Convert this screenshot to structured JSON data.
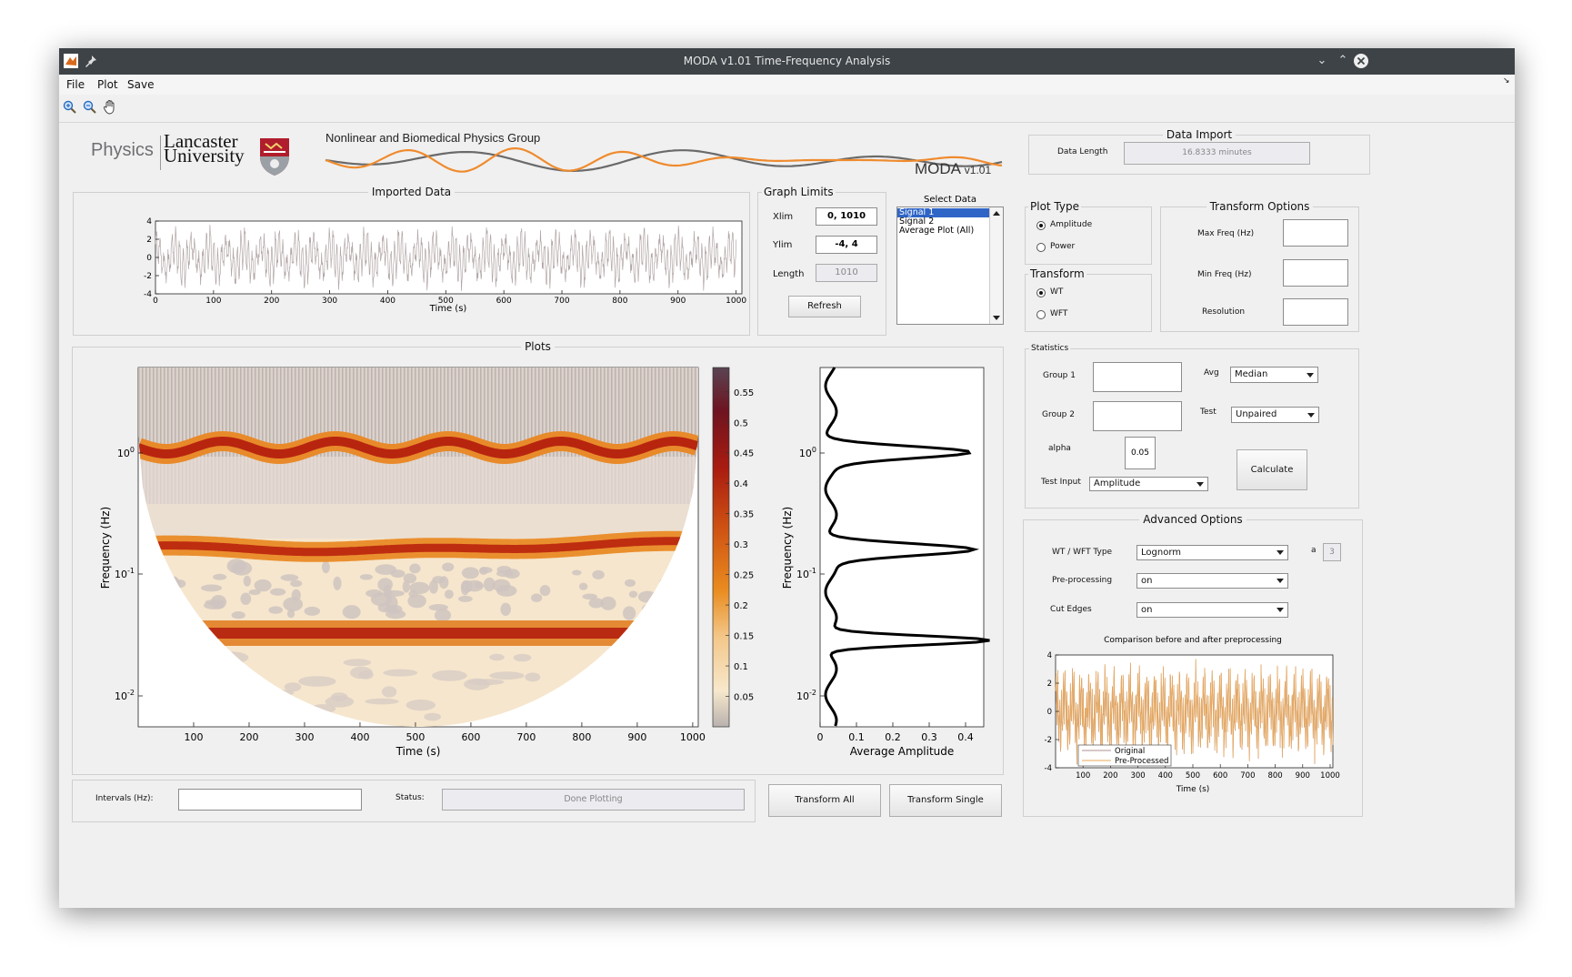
{
  "window": {
    "title": "MODA v1.01 Time-Frequency Analysis"
  },
  "menu": [
    "File",
    "Plot",
    "Save"
  ],
  "header": {
    "physics": "Physics",
    "lancaster": "Lancaster",
    "university": "University",
    "group_name": "Nonlinear and Biomedical Physics Group",
    "moda": "MODA",
    "version": "v1.01"
  },
  "imported_data": {
    "title": "Imported Data",
    "xlabel": "Time (s)",
    "yticks": [
      "4",
      "2",
      "0",
      "-2",
      "-4"
    ],
    "xticks": [
      "0",
      "100",
      "200",
      "300",
      "400",
      "500",
      "600",
      "700",
      "800",
      "900",
      "1000"
    ],
    "color": "#b3a6a6"
  },
  "graph_limits": {
    "title": "Graph Limits",
    "xlim_label": "Xlim",
    "xlim_value": "0, 1010",
    "ylim_label": "Ylim",
    "ylim_value": "-4, 4",
    "length_label": "Length",
    "length_value": "1010",
    "refresh_label": "Refresh"
  },
  "select_data": {
    "title": "Select Data",
    "items": [
      "Signal 1",
      "Signal 2",
      "Average Plot (All)"
    ],
    "selected_index": 0
  },
  "data_import": {
    "title": "Data Import",
    "length_label": "Data Length",
    "length_value": "16.8333 minutes"
  },
  "plot_type": {
    "title": "Plot Type",
    "options": [
      "Amplitude",
      "Power"
    ],
    "selected": "Amplitude"
  },
  "transform": {
    "title": "Transform",
    "options": [
      "WT",
      "WFT"
    ],
    "selected": "WT"
  },
  "transform_options": {
    "title": "Transform Options",
    "max_freq_label": "Max Freq (Hz)",
    "min_freq_label": "Min Freq (Hz)",
    "resolution_label": "Resolution"
  },
  "plots": {
    "title": "Plots",
    "ylabel": "Frequency (Hz)",
    "xlabel": "Time (s)",
    "xticks": [
      "100",
      "200",
      "300",
      "400",
      "500",
      "600",
      "700",
      "800",
      "900",
      "1000"
    ],
    "yticks": [
      {
        "base": "10",
        "exp": "0"
      },
      {
        "base": "10",
        "exp": "-1"
      },
      {
        "base": "10",
        "exp": "-2"
      }
    ],
    "colorbar_ticks": [
      "0.55",
      "0.5",
      "0.45",
      "0.4",
      "0.35",
      "0.3",
      "0.25",
      "0.2",
      "0.15",
      "0.1",
      "0.05"
    ],
    "avg_xlabel": "Average Amplitude",
    "avg_xticks": [
      "0",
      "0.1",
      "0.2",
      "0.3",
      "0.4"
    ]
  },
  "statistics": {
    "title": "Statistics",
    "group1_label": "Group 1",
    "group2_label": "Group 2",
    "avg_label": "Avg",
    "avg_value": "Median",
    "test_label": "Test",
    "test_value": "Unpaired",
    "alpha_label": "alpha",
    "alpha_value": "0.05",
    "test_input_label": "Test Input",
    "test_input_value": "Amplitude",
    "calculate_label": "Calculate"
  },
  "advanced_options": {
    "title": "Advanced Options",
    "type_label": "WT / WFT Type",
    "type_value": "Lognorm",
    "a_label": "a",
    "a_value": "3",
    "preproc_label": "Pre-processing",
    "preproc_value": "on",
    "cut_edges_label": "Cut Edges",
    "cut_edges_value": "on",
    "comparison_title": "Comparison before and after preprocessing",
    "cmp_xlabel": "Time (s)",
    "cmp_yticks": [
      "4",
      "2",
      "0",
      "-2",
      "-4"
    ],
    "cmp_xticks": [
      "100",
      "200",
      "300",
      "400",
      "500",
      "600",
      "700",
      "800",
      "900",
      "1000"
    ],
    "legend": [
      "Original",
      "Pre-Processed"
    ],
    "orig_color": "#b08f8f",
    "pre_color": "#e8a85a"
  },
  "bottom": {
    "intervals_label": "Intervals (Hz):",
    "status_label": "Status:",
    "status_value": "Done Plotting",
    "transform_all_label": "Transform All",
    "transform_single_label": "Transform Single"
  }
}
